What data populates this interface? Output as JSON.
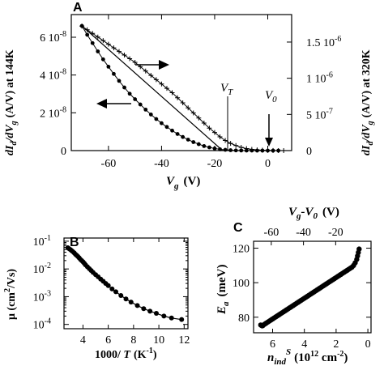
{
  "chart_data": [
    {
      "id": "A",
      "type": "line",
      "panel_label": "A",
      "x_ticks": [
        "-60",
        "-40",
        "-20",
        "0"
      ],
      "xlim": [
        -74,
        9
      ],
      "xlabel": {
        "main": "V",
        "sub": "g",
        "unit": "(V)"
      },
      "ylabel_left": {
        "main": "dI",
        "sub1": "d",
        "mid": "/dV",
        "sub2": "g",
        "rest": "(A/V) at 144K"
      },
      "ylabel_right": {
        "main": "dI",
        "sub1": "d",
        "mid": "/dV",
        "sub2": "g",
        "rest": "(A/V) at 320K"
      },
      "y_left": {
        "range": [
          0,
          7.2e-08
        ],
        "ticks": [
          {
            "value": 0,
            "label": "0"
          },
          {
            "value": 2e-08,
            "label": "2 10",
            "exp": "-8"
          },
          {
            "value": 4e-08,
            "label": "4 10",
            "exp": "-8"
          },
          {
            "value": 6e-08,
            "label": "6 10",
            "exp": "-8"
          }
        ]
      },
      "y_right": {
        "range": [
          0,
          1.88e-06
        ],
        "ticks": [
          {
            "value": 0,
            "label": "0"
          },
          {
            "value": 5e-07,
            "label": "5 10",
            "exp": "-7"
          },
          {
            "value": 1e-06,
            "label": "1 10",
            "exp": "-6"
          },
          {
            "value": 1.5e-06,
            "label": "1.5 10",
            "exp": "-6"
          }
        ]
      },
      "series": [
        {
          "marker": "filled-circle",
          "axis": "left",
          "x": [
            -70,
            -68,
            -66,
            -64,
            -62,
            -60,
            -58,
            -56,
            -54,
            -52,
            -50,
            -48,
            -46,
            -44,
            -42,
            -40,
            -38,
            -36,
            -34,
            -32,
            -30,
            -28,
            -26,
            -24,
            -22,
            -20,
            -18,
            -16,
            -14,
            -12,
            -10,
            -8,
            -6,
            -4,
            -2,
            0,
            2,
            4
          ],
          "y": [
            6.6e-08,
            6.13e-08,
            5.69e-08,
            5.25e-08,
            4.83e-08,
            4.44e-08,
            4.06e-08,
            3.69e-08,
            3.34e-08,
            3.01e-08,
            2.72e-08,
            2.44e-08,
            2.17e-08,
            1.91e-08,
            1.67e-08,
            1.45e-08,
            1.25e-08,
            1.06e-08,
            8.8e-09,
            7.2e-09,
            5.8e-09,
            4.5e-09,
            3.4e-09,
            2.4e-09,
            1.7e-09,
            1.1e-09,
            7e-10,
            4e-10,
            2e-10,
            1e-10,
            5e-11,
            2e-11,
            1e-11,
            0,
            0,
            0,
            0,
            0
          ]
        },
        {
          "marker": "plus",
          "axis": "right",
          "x": [
            -70,
            -68,
            -66,
            -64,
            -62,
            -60,
            -58,
            -56,
            -54,
            -52,
            -50,
            -48,
            -46,
            -44,
            -42,
            -40,
            -38,
            -36,
            -34,
            -32,
            -30,
            -28,
            -26,
            -24,
            -22,
            -20,
            -18,
            -16,
            -14,
            -12,
            -10,
            -8,
            -6,
            -4,
            -2,
            0,
            2,
            4,
            6
          ],
          "y": [
            1.72e-06,
            1.67e-06,
            1.62e-06,
            1.57e-06,
            1.52e-06,
            1.47e-06,
            1.42e-06,
            1.37e-06,
            1.32e-06,
            1.27e-06,
            1.22e-06,
            1.16e-06,
            1.1e-06,
            1.04e-06,
            9.8e-07,
            9.2e-07,
            8.6e-07,
            8e-07,
            7.3e-07,
            6.6e-07,
            5.9e-07,
            5.2e-07,
            4.5e-07,
            3.8e-07,
            3.1e-07,
            2.5e-07,
            1.9e-07,
            1.4e-07,
            1e-07,
            7e-08,
            4.5e-08,
            2.8e-08,
            1.7e-08,
            1e-08,
            6e-09,
            3e-09,
            1.5e-09,
            5e-10,
            0
          ]
        }
      ],
      "tangent_line": {
        "x": [
          -70,
          -17
        ],
        "y_left": [
          6.6e-08,
          0
        ]
      },
      "annotations": [
        {
          "text": "V",
          "sub": "T",
          "x": -17
        },
        {
          "text": "V",
          "sub": "0",
          "x": 1
        }
      ]
    },
    {
      "id": "B",
      "type": "scatter",
      "panel_label": "B",
      "yscale": "log",
      "xlim": [
        2.5,
        12.3
      ],
      "ylim": [
        7e-05,
        0.13
      ],
      "x_ticks": [
        "4",
        "6",
        "8",
        "10",
        "12"
      ],
      "y_ticks": [
        {
          "value": 0.1,
          "label": "10",
          "exp": "-1"
        },
        {
          "value": 0.01,
          "label": "10",
          "exp": "-2"
        },
        {
          "value": 0.001,
          "label": "10",
          "exp": "-3"
        },
        {
          "value": 0.0001,
          "label": "10",
          "exp": "-4"
        }
      ],
      "xlabel": {
        "pre": "1000/ ",
        "main": "T",
        "unit": "(K",
        "exp": "-1",
        "close": ")"
      },
      "ylabel": {
        "text": "μ (cm",
        "exp": "2",
        "rest": "/Vs)"
      },
      "x": [
        2.8,
        2.9,
        3.0,
        3.1,
        3.2,
        3.3,
        3.4,
        3.5,
        3.6,
        3.7,
        3.8,
        3.9,
        4.0,
        4.1,
        4.2,
        4.35,
        4.5,
        4.65,
        4.8,
        5.0,
        5.2,
        5.4,
        5.6,
        5.8,
        6.0,
        6.3,
        6.6,
        7.0,
        7.4,
        7.8,
        8.3,
        8.8,
        9.3,
        9.8,
        10.4,
        11.0,
        11.8
      ],
      "y": [
        0.058,
        0.054,
        0.05,
        0.046,
        0.042,
        0.038,
        0.034,
        0.031,
        0.028,
        0.025,
        0.022,
        0.02,
        0.018,
        0.016,
        0.014,
        0.012,
        0.0102,
        0.0088,
        0.0075,
        0.0062,
        0.0052,
        0.0043,
        0.0036,
        0.003,
        0.0025,
        0.0019,
        0.0015,
        0.0011,
        0.00083,
        0.00064,
        0.00048,
        0.00037,
        0.0003,
        0.00025,
        0.0002,
        0.00017,
        0.00015
      ]
    },
    {
      "id": "C",
      "type": "scatter",
      "panel_label": "C",
      "xlim": [
        7.2,
        -0.2
      ],
      "ylim": [
        71,
        124
      ],
      "x_ticks": [
        "6",
        "4",
        "2",
        "0"
      ],
      "y_ticks": [
        "80",
        "100",
        "120"
      ],
      "top_x_ticks": [
        "-60",
        "-40",
        "-20"
      ],
      "xlabel": {
        "main": "n",
        "sub": "ind",
        "sup": "S",
        "unit": "(10",
        "exp": "12",
        "rest": " cm",
        "exp2": "-2",
        "close": ")"
      },
      "ylabel": {
        "main": "E",
        "sub": "a",
        "unit": "(meV)"
      },
      "top_xlabel": {
        "main": "V",
        "sub": "g",
        "mid": "-V",
        "sub2": "0",
        "unit": "(V)"
      },
      "x": [
        6.75,
        6.7,
        6.65,
        6.6,
        6.5,
        6.4,
        6.3,
        6.2,
        6.1,
        6.0,
        5.9,
        5.8,
        5.7,
        5.6,
        5.5,
        5.4,
        5.3,
        5.2,
        5.1,
        5.0,
        4.9,
        4.8,
        4.7,
        4.6,
        4.5,
        4.4,
        4.3,
        4.2,
        4.1,
        4.0,
        3.9,
        3.8,
        3.7,
        3.6,
        3.5,
        3.4,
        3.3,
        3.2,
        3.1,
        3.0,
        2.9,
        2.8,
        2.7,
        2.6,
        2.5,
        2.4,
        2.3,
        2.2,
        2.1,
        2.0,
        1.9,
        1.8,
        1.7,
        1.6,
        1.5,
        1.4,
        1.3,
        1.2,
        1.1,
        1.0,
        0.9,
        0.8,
        0.7,
        0.65,
        0.6,
        0.55
      ],
      "y": [
        75.5,
        75.2,
        75,
        75.3,
        76,
        76.6,
        77.2,
        77.8,
        78.4,
        79,
        79.6,
        80.2,
        80.8,
        81.4,
        82,
        82.6,
        83.2,
        83.8,
        84.4,
        85,
        85.6,
        86.2,
        86.8,
        87.4,
        88,
        88.6,
        89.2,
        89.8,
        90.4,
        91,
        91.6,
        92.2,
        92.8,
        93.4,
        94,
        94.6,
        95.2,
        95.8,
        96.4,
        97,
        97.6,
        98.2,
        98.8,
        99.4,
        100,
        100.6,
        101.2,
        101.8,
        102.4,
        103,
        103.6,
        104.2,
        104.8,
        105.4,
        106,
        106.6,
        107.2,
        107.8,
        108.4,
        109,
        110,
        111.5,
        113.5,
        115.5,
        117.5,
        119.5
      ]
    }
  ]
}
